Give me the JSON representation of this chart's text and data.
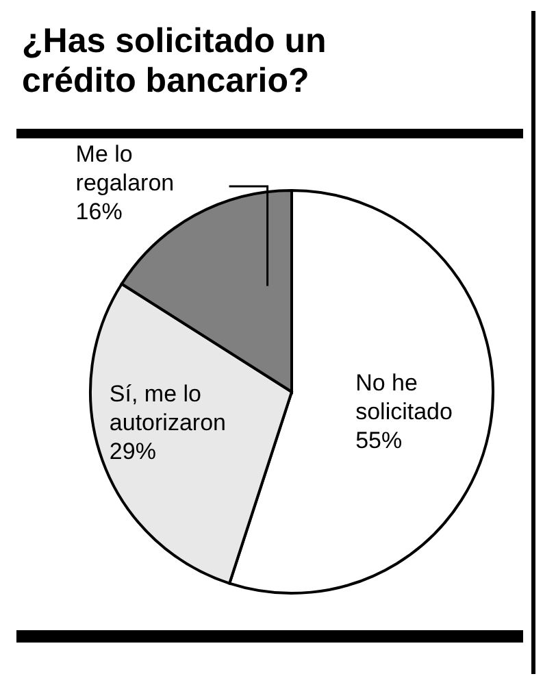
{
  "chart_data": {
    "type": "pie",
    "title": "¿Has solicitado un crédito bancario?",
    "categories": [
      "No he solicitado",
      "Sí, me lo autorizaron",
      "Me lo regalaron"
    ],
    "values": [
      55,
      29,
      16
    ],
    "colors": [
      "#ffffff",
      "#e8e8e8",
      "#808080"
    ],
    "value_labels": [
      "55%",
      "29%",
      "16%"
    ]
  }
}
